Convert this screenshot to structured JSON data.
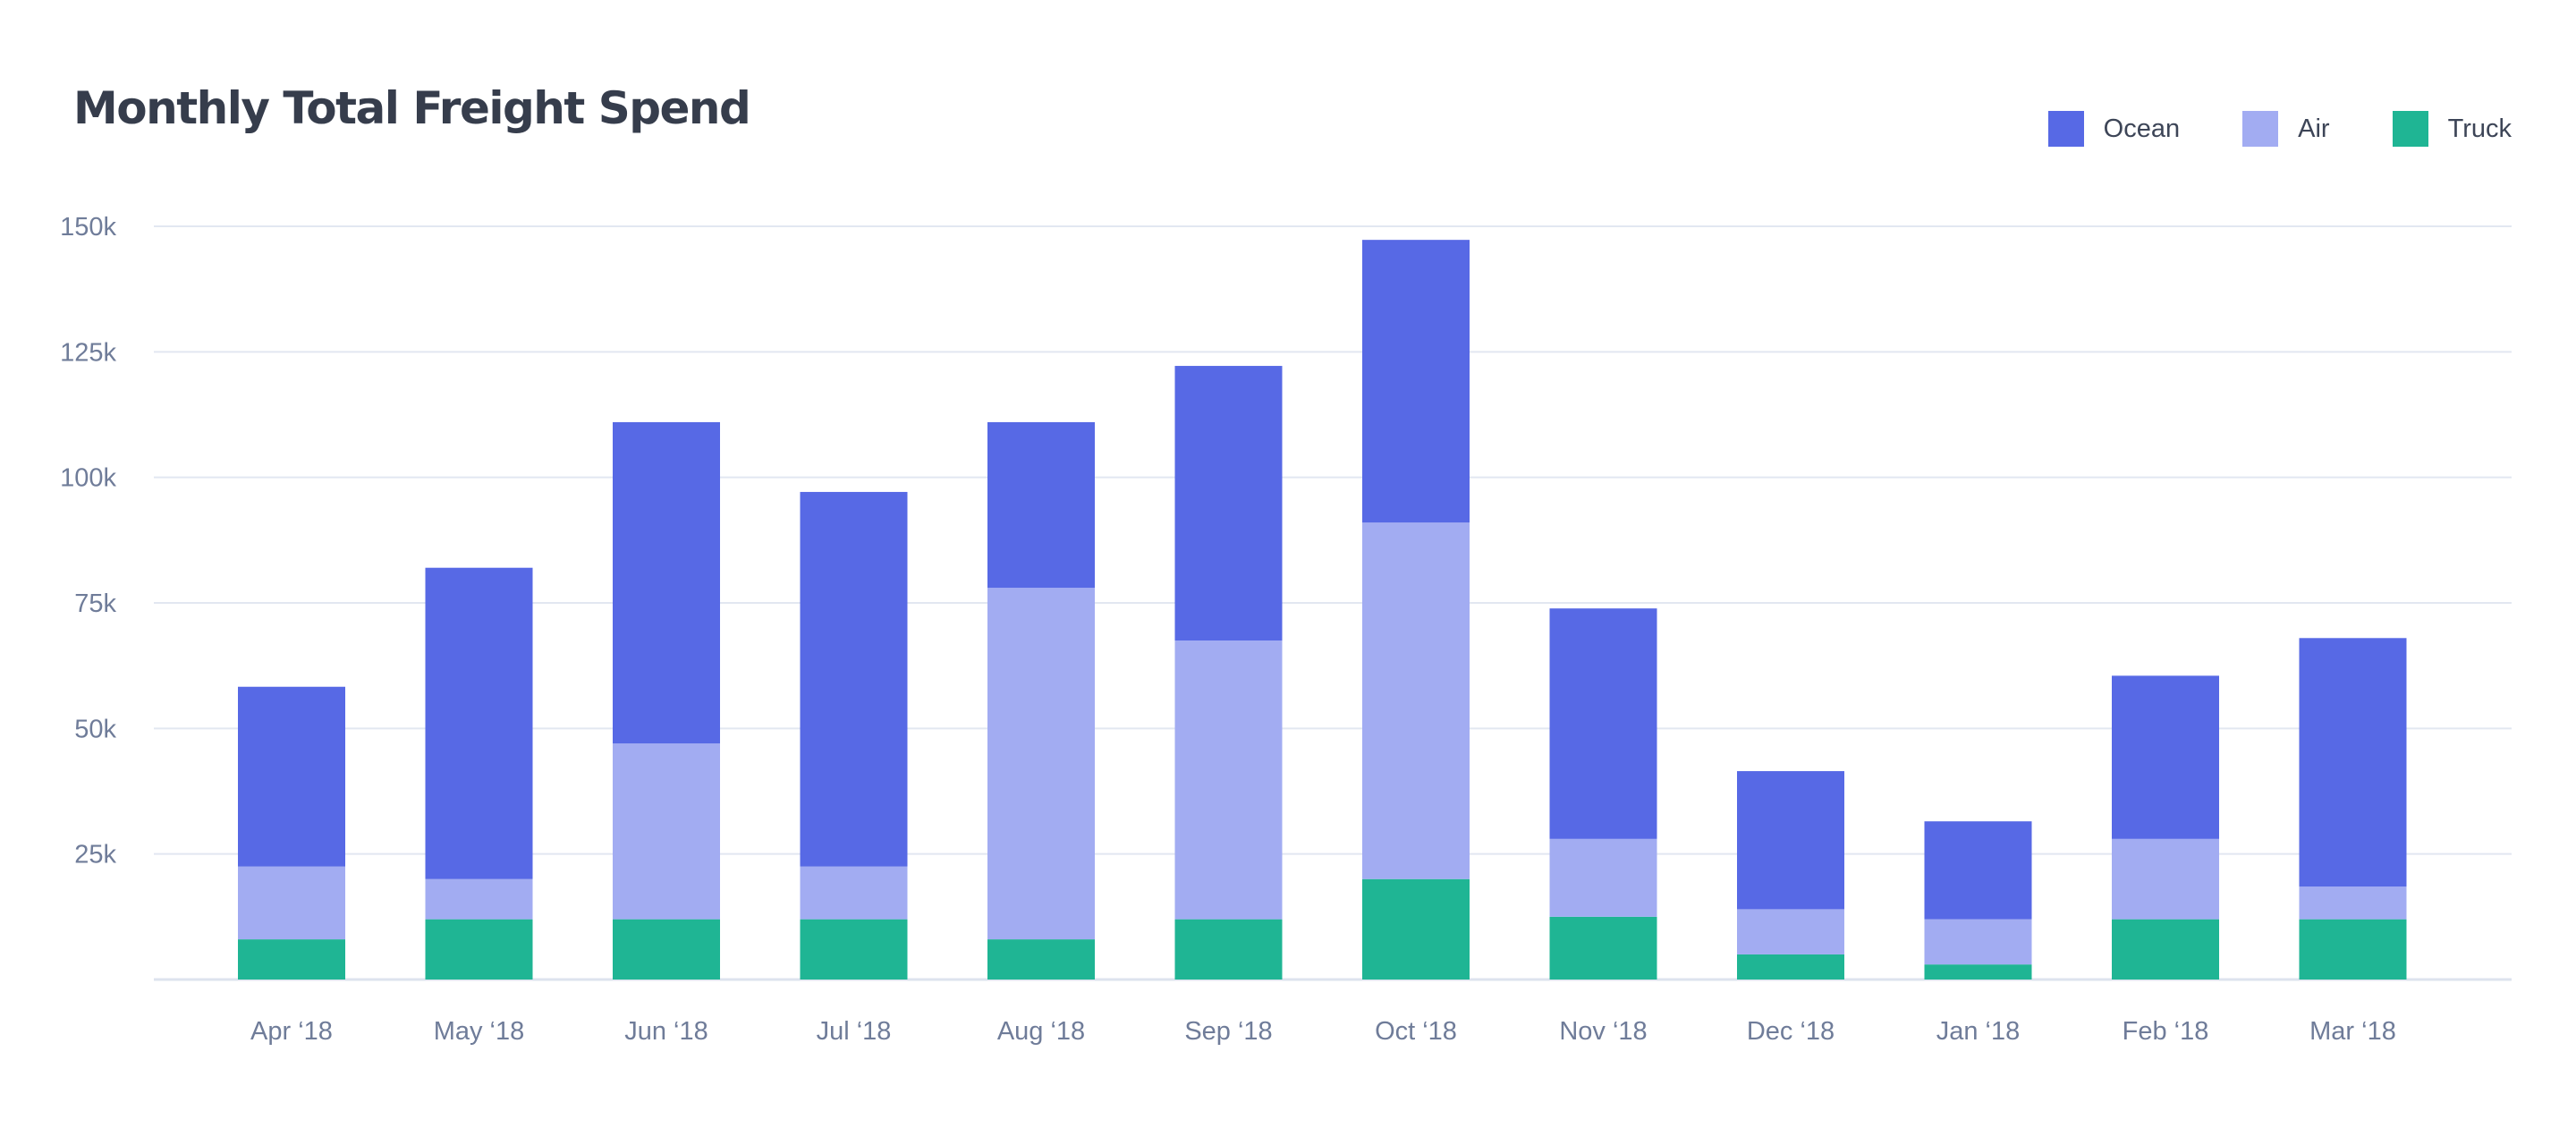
{
  "chart_data": {
    "type": "bar",
    "stacked": true,
    "title": "Monthly Total Freight Spend",
    "xlabel": "",
    "ylabel": "",
    "categories": [
      "Apr ‘18",
      "May ‘18",
      "Jun ‘18",
      "Jul ‘18",
      "Aug ‘18",
      "Sep ‘18",
      "Oct ‘18",
      "Nov ‘18",
      "Dec ‘18",
      "Jan ‘18",
      "Feb ‘18",
      "Mar ‘18"
    ],
    "series": [
      {
        "name": "Truck",
        "color": "#1fb594",
        "values": [
          8000,
          12000,
          12000,
          12000,
          8000,
          12000,
          20000,
          12500,
          5000,
          3000,
          12000,
          12000
        ]
      },
      {
        "name": "Air",
        "color": "#a2acf2",
        "values": [
          14500,
          8000,
          35000,
          10500,
          70000,
          55500,
          71000,
          15500,
          9000,
          9000,
          16000,
          6500
        ]
      },
      {
        "name": "Ocean",
        "color": "#5769e5",
        "values": [
          35800,
          62000,
          64000,
          74600,
          33000,
          54700,
          56300,
          45900,
          27500,
          19500,
          32500,
          49500
        ]
      }
    ],
    "legend_order": [
      "Ocean",
      "Air",
      "Truck"
    ],
    "legend_position": "top-right",
    "ylim": [
      0,
      150000
    ],
    "yticks": [
      25000,
      50000,
      75000,
      100000,
      125000,
      150000
    ],
    "ytick_labels": [
      "25k",
      "50k",
      "75k",
      "100k",
      "125k",
      "150k"
    ],
    "grid": true
  }
}
